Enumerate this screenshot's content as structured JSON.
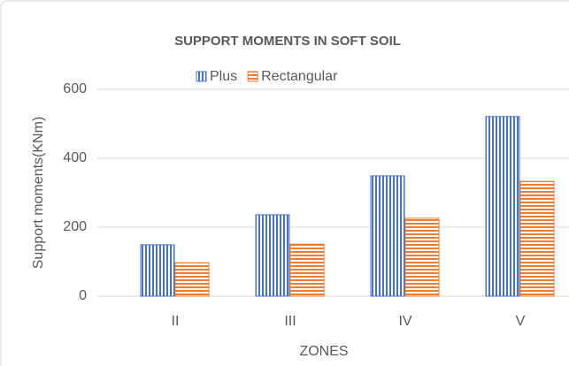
{
  "chart_data": {
    "type": "bar",
    "title": "SUPPORT MOMENTS IN SOFT SOIL",
    "x_label": "ZONES",
    "y_label": "Support moments(KNm)",
    "categories": [
      "II",
      "III",
      "IV",
      "V"
    ],
    "series": [
      {
        "name": "Plus",
        "color": "#4472c4",
        "values": [
          149,
          236,
          349,
          521
        ]
      },
      {
        "name": "Rectangular",
        "color": "#ed7d31",
        "values": [
          97,
          151,
          226,
          333
        ]
      }
    ],
    "ylim": [
      0,
      600
    ],
    "yticks": [
      0,
      200,
      400,
      600
    ],
    "grid": true,
    "legend": "top"
  }
}
